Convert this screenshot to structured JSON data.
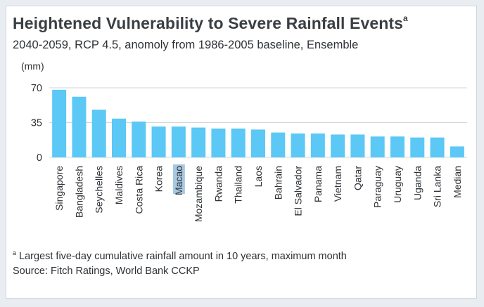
{
  "chart_data": {
    "type": "bar",
    "title": "Heightened Vulnerability to Severe Rainfall Events",
    "title_superscript": "a",
    "subtitle": "2040-2059, RCP 4.5, anomoly from 1986-2005 baseline, Ensemble",
    "ylabel": "(mm)",
    "xlabel": "",
    "ylim": [
      0,
      70
    ],
    "yticks": [
      0,
      35,
      70
    ],
    "grid": true,
    "bar_color": "#5bc8f5",
    "highlight_label_color": "#a8c8e0",
    "highlighted_category": "Macao",
    "categories": [
      "Singapore",
      "Bangladesh",
      "Seychelles",
      "Maldives",
      "Costa Rica",
      "Korea",
      "Macao",
      "Mozambique",
      "Rwanda",
      "Thailand",
      "Laos",
      "Bahrain",
      "El Salvador",
      "Panama",
      "Vietnam",
      "Qatar",
      "Paraguay",
      "Uruguay",
      "Uganda",
      "Sri Lanka",
      "Median"
    ],
    "values": [
      68,
      61,
      48,
      39,
      36,
      31,
      31,
      30,
      29,
      29,
      28,
      25,
      24,
      24,
      23,
      23,
      21,
      21,
      20,
      20,
      11
    ]
  },
  "footnote": {
    "marker": "a",
    "text": " Largest five-day cumulative rainfall amount in 10 years, maximum month"
  },
  "source": "Source: Fitch Ratings, World Bank CCKP"
}
